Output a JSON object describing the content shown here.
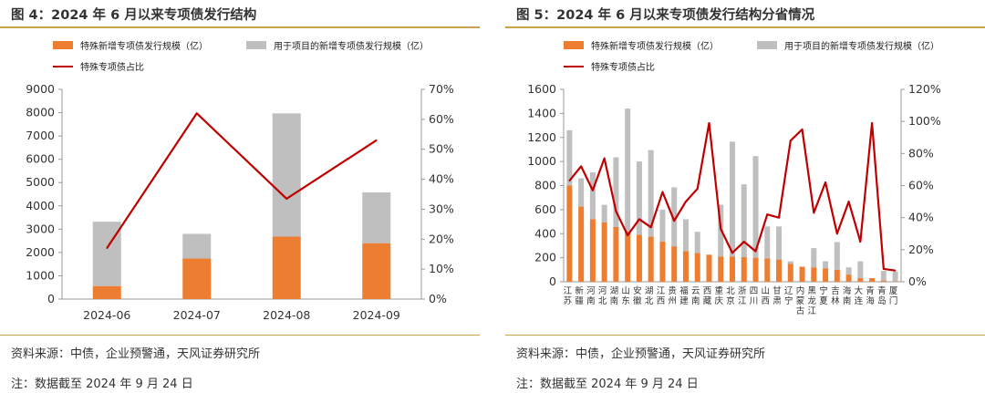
{
  "left": {
    "title": "图 4：2024 年 6 月以来专项债发行结构",
    "source": "资料来源：中债，企业预警通，天风证券研究所",
    "note": "注：数据截至 2024 年 9 月 24 日",
    "chart_data": {
      "type": "bar",
      "stacked": true,
      "categories": [
        "2024-06",
        "2024-07",
        "2024-08",
        "2024-09"
      ],
      "series": [
        {
          "name": "特殊新增专项债发行规模（亿）",
          "kind": "bar",
          "axis": "left",
          "color": "#ED7D31",
          "values": [
            560,
            1740,
            2680,
            2400
          ]
        },
        {
          "name": "用于项目的新增专项债发行规模（亿）",
          "kind": "bar",
          "axis": "left",
          "color": "#BFBFBF",
          "values": [
            2760,
            1060,
            5290,
            2180
          ]
        },
        {
          "name": "特殊专项债占比",
          "kind": "line",
          "axis": "right",
          "color": "#C00000",
          "values": [
            0.17,
            0.62,
            0.335,
            0.53
          ]
        }
      ],
      "ylim": [
        0,
        9000
      ],
      "yticks": [
        0,
        1000,
        2000,
        3000,
        4000,
        5000,
        6000,
        7000,
        8000,
        9000
      ],
      "y2lim": [
        0,
        0.7
      ],
      "y2ticks": [
        "0%",
        "10%",
        "20%",
        "30%",
        "40%",
        "50%",
        "60%",
        "70%"
      ],
      "legend": "top",
      "grid": false
    }
  },
  "right": {
    "title": "图 5：2024 年 6 月以来专项债发行结构分省情况",
    "source": "资料来源：中债，企业预警通，天风证券研究所",
    "note": "注：数据截至 2024 年 9 月 24 日",
    "chart_data": {
      "type": "bar",
      "stacked": true,
      "categories": [
        "江苏",
        "新疆",
        "河南",
        "河北",
        "湖南",
        "山东",
        "安徽",
        "湖北",
        "江西",
        "贵州",
        "福建",
        "云南",
        "西藏",
        "重庆",
        "北京",
        "浙江",
        "四川",
        "山西",
        "甘肃",
        "辽宁",
        "内蒙古",
        "黑龙江",
        "宁夏",
        "吉林",
        "海南",
        "大连",
        "青海",
        "青岛",
        "厦门"
      ],
      "series": [
        {
          "name": "特殊新增专项债发行规模（亿）",
          "kind": "bar",
          "axis": "left",
          "color": "#ED7D31",
          "values": [
            800,
            625,
            520,
            495,
            455,
            420,
            390,
            375,
            335,
            295,
            255,
            240,
            225,
            210,
            210,
            205,
            200,
            195,
            185,
            150,
            125,
            120,
            110,
            100,
            60,
            30,
            30,
            10,
            5
          ]
        },
        {
          "name": "用于项目的新增专项债发行规模（亿）",
          "kind": "bar",
          "axis": "left",
          "color": "#BFBFBF",
          "values": [
            460,
            235,
            390,
            145,
            580,
            1020,
            610,
            720,
            265,
            490,
            265,
            175,
            0,
            430,
            955,
            605,
            845,
            265,
            275,
            20,
            0,
            160,
            60,
            230,
            60,
            140,
            0,
            80,
            80
          ]
        },
        {
          "name": "特殊专项债占比",
          "kind": "line",
          "axis": "right",
          "color": "#C00000",
          "values": [
            0.63,
            0.72,
            0.57,
            0.77,
            0.44,
            0.29,
            0.39,
            0.34,
            0.56,
            0.38,
            0.5,
            0.58,
            0.99,
            0.33,
            0.18,
            0.25,
            0.19,
            0.42,
            0.4,
            0.88,
            0.95,
            0.43,
            0.62,
            0.3,
            0.5,
            0.25,
            0.99,
            0.08,
            0.07
          ]
        }
      ],
      "ylim": [
        0,
        1600
      ],
      "yticks": [
        0,
        200,
        400,
        600,
        800,
        1000,
        1200,
        1400,
        1600
      ],
      "y2lim": [
        0,
        1.2
      ],
      "y2ticks": [
        "0%",
        "20%",
        "40%",
        "60%",
        "80%",
        "100%",
        "120%"
      ],
      "legend": "top",
      "grid": false
    }
  }
}
